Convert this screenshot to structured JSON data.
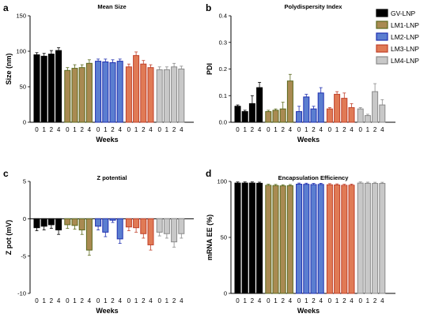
{
  "chart_data": [
    {
      "panel": "a",
      "type": "bar",
      "title": "Mean Size",
      "xlabel": "Weeks",
      "ylabel": "Size (nm)",
      "ylim": [
        0,
        150
      ],
      "yticks": [
        0,
        50,
        100,
        150
      ],
      "categories": [
        "0",
        "1",
        "2",
        "4"
      ],
      "series": [
        {
          "name": "GV-LNP",
          "values": [
            95,
            93,
            96,
            101
          ],
          "errors": [
            3,
            4,
            5,
            4
          ]
        },
        {
          "name": "LM1-LNP",
          "values": [
            73,
            76,
            77,
            83
          ],
          "errors": [
            4,
            5,
            4,
            5
          ]
        },
        {
          "name": "LM2-LNP",
          "values": [
            86,
            85,
            84,
            86
          ],
          "errors": [
            3,
            4,
            4,
            3
          ]
        },
        {
          "name": "LM3-LNP",
          "values": [
            78,
            94,
            82,
            77
          ],
          "errors": [
            4,
            5,
            5,
            4
          ]
        },
        {
          "name": "LM4-LNP",
          "values": [
            74,
            74,
            78,
            75
          ],
          "errors": [
            4,
            4,
            5,
            4
          ]
        }
      ]
    },
    {
      "panel": "b",
      "type": "bar",
      "title": "Polydispersity Index",
      "xlabel": "Weeks",
      "ylabel": "PDI",
      "ylim": [
        0,
        0.4
      ],
      "yticks": [
        0.0,
        0.1,
        0.2,
        0.3,
        0.4
      ],
      "ytick_labels": [
        "0.0",
        "0.1",
        "0.2",
        "0.3",
        "0.4"
      ],
      "categories": [
        "0",
        "1",
        "2",
        "4"
      ],
      "series": [
        {
          "name": "GV-LNP",
          "values": [
            0.06,
            0.04,
            0.07,
            0.13
          ],
          "errors": [
            0.005,
            0.005,
            0.03,
            0.02
          ]
        },
        {
          "name": "LM1-LNP",
          "values": [
            0.04,
            0.045,
            0.05,
            0.155
          ],
          "errors": [
            0.005,
            0.005,
            0.025,
            0.025
          ]
        },
        {
          "name": "LM2-LNP",
          "values": [
            0.04,
            0.095,
            0.05,
            0.11
          ],
          "errors": [
            0.02,
            0.01,
            0.01,
            0.02
          ]
        },
        {
          "name": "LM3-LNP",
          "values": [
            0.05,
            0.105,
            0.09,
            0.055
          ],
          "errors": [
            0.005,
            0.01,
            0.02,
            0.015
          ]
        },
        {
          "name": "LM4-LNP",
          "values": [
            0.05,
            0.025,
            0.115,
            0.065
          ],
          "errors": [
            0.005,
            0.005,
            0.03,
            0.02
          ]
        }
      ]
    },
    {
      "panel": "c",
      "type": "bar",
      "title": "Z potential",
      "xlabel": "Weeks",
      "ylabel": "Z pot (mV)",
      "ylim": [
        -10,
        5
      ],
      "yticks": [
        -10,
        -5,
        0,
        5
      ],
      "categories": [
        "0",
        "1",
        "2",
        "4"
      ],
      "series": [
        {
          "name": "GV-LNP",
          "values": [
            -1.2,
            -1.0,
            -0.8,
            -1.5
          ],
          "errors": [
            0.4,
            0.5,
            0.5,
            0.6
          ]
        },
        {
          "name": "LM1-LNP",
          "values": [
            -0.8,
            -0.9,
            -1.5,
            -4.2
          ],
          "errors": [
            0.5,
            0.5,
            0.6,
            0.7
          ]
        },
        {
          "name": "LM2-LNP",
          "values": [
            -1.0,
            -1.8,
            -0.2,
            -2.7
          ],
          "errors": [
            0.5,
            0.6,
            0.3,
            0.6
          ]
        },
        {
          "name": "LM3-LNP",
          "values": [
            -1.1,
            -1.2,
            -2.0,
            -3.5
          ],
          "errors": [
            0.5,
            0.6,
            0.6,
            0.7
          ]
        },
        {
          "name": "LM4-LNP",
          "values": [
            -1.8,
            -2.0,
            -3.1,
            -2.0
          ],
          "errors": [
            0.5,
            0.6,
            0.7,
            0.6
          ]
        }
      ]
    },
    {
      "panel": "d",
      "type": "bar",
      "title": "Encapsulation Efficiency",
      "xlabel": "Weeks",
      "ylabel": "mRNA EE (%)",
      "ylim": [
        0,
        100
      ],
      "yticks": [
        0,
        50,
        100
      ],
      "categories": [
        "0",
        "1",
        "2",
        "4"
      ],
      "series": [
        {
          "name": "GV-LNP",
          "values": [
            98.5,
            98.5,
            98.5,
            98.3
          ],
          "errors": [
            1,
            1,
            1,
            1
          ]
        },
        {
          "name": "LM1-LNP",
          "values": [
            96.5,
            96.3,
            96.0,
            96.2
          ],
          "errors": [
            1,
            1,
            1,
            1
          ]
        },
        {
          "name": "LM2-LNP",
          "values": [
            97.5,
            97.4,
            97.2,
            97.3
          ],
          "errors": [
            1,
            1,
            1,
            1
          ]
        },
        {
          "name": "LM3-LNP",
          "values": [
            97.0,
            96.8,
            96.5,
            96.6
          ],
          "errors": [
            1,
            1,
            1,
            1
          ]
        },
        {
          "name": "LM4-LNP",
          "values": [
            98.5,
            98.3,
            98.2,
            98.2
          ],
          "errors": [
            1,
            1,
            1,
            1
          ]
        }
      ]
    }
  ],
  "legend": {
    "placement": "top-right",
    "items": [
      {
        "label": "GV-LNP",
        "color": "#000000"
      },
      {
        "label": "LM1-LNP",
        "color": "#6b7a2a"
      },
      {
        "label": "LM2-LNP",
        "color": "#3a4bd0"
      },
      {
        "label": "LM3-LNP",
        "color": "#d9663a"
      },
      {
        "label": "LM4-LNP",
        "color": "#a6a6a6"
      }
    ]
  },
  "series_styles": [
    {
      "fill": "#000000",
      "stroke": "#000000"
    },
    {
      "fill": "#a98a52",
      "stroke": "#5c6a1e"
    },
    {
      "fill": "#5b7ed0",
      "stroke": "#1f2fb0"
    },
    {
      "fill": "#e07a55",
      "stroke": "#c0402a"
    },
    {
      "fill": "#c8c8c8",
      "stroke": "#8a8a8a"
    }
  ],
  "panel_letters": [
    "a",
    "b",
    "c",
    "d"
  ]
}
